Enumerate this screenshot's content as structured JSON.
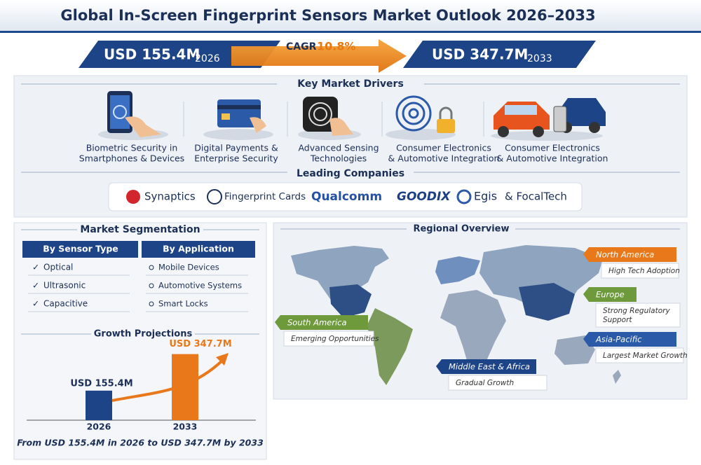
{
  "header": {
    "title": "Global In-Screen Fingerprint Sensors Market Outlook 2026–2033"
  },
  "summary": {
    "start": {
      "value_label": "USD 155.4M",
      "year": "2026"
    },
    "cagr": {
      "label": "CAGR",
      "value": "10.8%"
    },
    "end": {
      "value_label": "USD 347.7M",
      "year": "2033"
    }
  },
  "drivers": {
    "title": "Key Market Drivers",
    "items": [
      {
        "lines": [
          "Biometric Security in",
          "Smartphones & Devices"
        ]
      },
      {
        "lines": [
          "Digital Payments &",
          "Enterprise Security"
        ]
      },
      {
        "lines": [
          "Advanced Sensing",
          "Technologies"
        ]
      },
      {
        "lines": [
          "Consumer Electronics",
          "& Automotive Integration"
        ]
      },
      {
        "lines": [
          "Consumer Electronics",
          "& Automotive Integration"
        ]
      }
    ]
  },
  "companies": {
    "title": "Leading Companies",
    "items": [
      "Synaptics",
      "Fingerprint Cards",
      "Qualcomm",
      "GOODIX",
      "Egis",
      "& FocalTech"
    ]
  },
  "segmentation": {
    "title": "Market Segmentation",
    "columns": [
      {
        "title": "By Sensor Type",
        "items": [
          "Optical",
          "Ultrasonic",
          "Capacitive"
        ]
      },
      {
        "title": "By Application",
        "items": [
          "Mobile Devices",
          "Automotive Systems",
          "Smart Locks"
        ]
      }
    ]
  },
  "growth": {
    "title": "Growth Projections",
    "categories": [
      "2026",
      "2033"
    ],
    "values": [
      155.4,
      347.7
    ],
    "value_labels": [
      "USD 155.4M",
      "USD 347.7M"
    ],
    "caption": "From USD 155.4M in 2026 to USD 347.7M by 2033"
  },
  "regional": {
    "title": "Regional Overview",
    "regions": [
      {
        "name": "North America",
        "note_lines": [
          "High Tech Adoption"
        ]
      },
      {
        "name": "Europe",
        "note_lines": [
          "Strong Regulatory",
          "Support"
        ]
      },
      {
        "name": "Asia-Pacific",
        "note_lines": [
          "Largest Market Growth"
        ]
      },
      {
        "name": "South America",
        "note_lines": [
          "Emerging Opportunities"
        ]
      },
      {
        "name": "Middle East & Africa",
        "note_lines": [
          "Gradual Growth"
        ]
      }
    ]
  }
}
